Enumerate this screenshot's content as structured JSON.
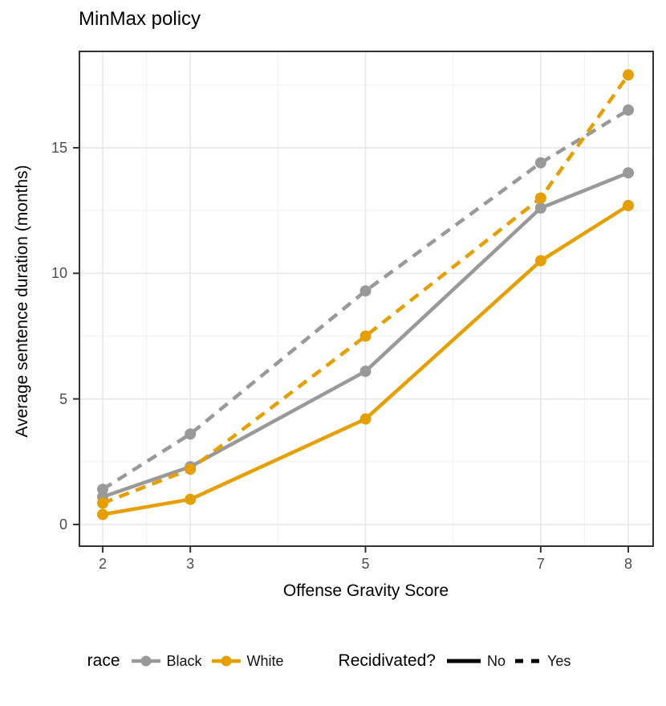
{
  "chart_data": {
    "type": "line",
    "title": "MinMax policy",
    "xlabel": "Offense Gravity Score",
    "ylabel": "Average sentence duration (months)",
    "x": [
      2,
      3,
      5,
      7,
      8
    ],
    "x_ticks": [
      2,
      3,
      5,
      7,
      8
    ],
    "y_ticks": [
      0,
      5,
      10,
      15
    ],
    "x_minor_gridlines": [
      2.5,
      4,
      6,
      7.5
    ],
    "y_minor_gridlines": [
      2.5,
      7.5,
      12.5,
      17.5
    ],
    "xlim": [
      1.72,
      8.29
    ],
    "ylim": [
      -0.9,
      18.87
    ],
    "grid": true,
    "legend_position": "bottom",
    "series": [
      {
        "name": "Black / No",
        "race": "Black",
        "recidivated": "No",
        "color": "#999999",
        "linetype": "solid",
        "values": [
          1.1,
          2.3,
          6.1,
          12.6,
          14.0
        ]
      },
      {
        "name": "Black / Yes",
        "race": "Black",
        "recidivated": "Yes",
        "color": "#999999",
        "linetype": "dashed",
        "values": [
          1.4,
          3.6,
          9.3,
          14.4,
          16.5
        ]
      },
      {
        "name": "White / No",
        "race": "White",
        "recidivated": "No",
        "color": "#E69F00",
        "linetype": "solid",
        "values": [
          0.4,
          1.0,
          4.2,
          10.5,
          12.7
        ]
      },
      {
        "name": "White / Yes",
        "race": "White",
        "recidivated": "Yes",
        "color": "#E69F00",
        "linetype": "dashed",
        "values": [
          0.85,
          2.2,
          7.5,
          13.0,
          17.9
        ]
      }
    ],
    "legend": {
      "race": {
        "title": "race",
        "entries": [
          {
            "label": "Black",
            "color": "#999999"
          },
          {
            "label": "White",
            "color": "#E69F00"
          }
        ]
      },
      "recidivated": {
        "title": "Recidivated?",
        "entries": [
          {
            "label": "No",
            "linetype": "solid"
          },
          {
            "label": "Yes",
            "linetype": "dashed"
          }
        ]
      }
    },
    "colors": {
      "grid_major": "#e7e7e7",
      "grid_minor": "#f2f2f2",
      "panel_border": "#333333",
      "tick_mark": "#333333",
      "tick_label": "#4d4d4d"
    }
  }
}
